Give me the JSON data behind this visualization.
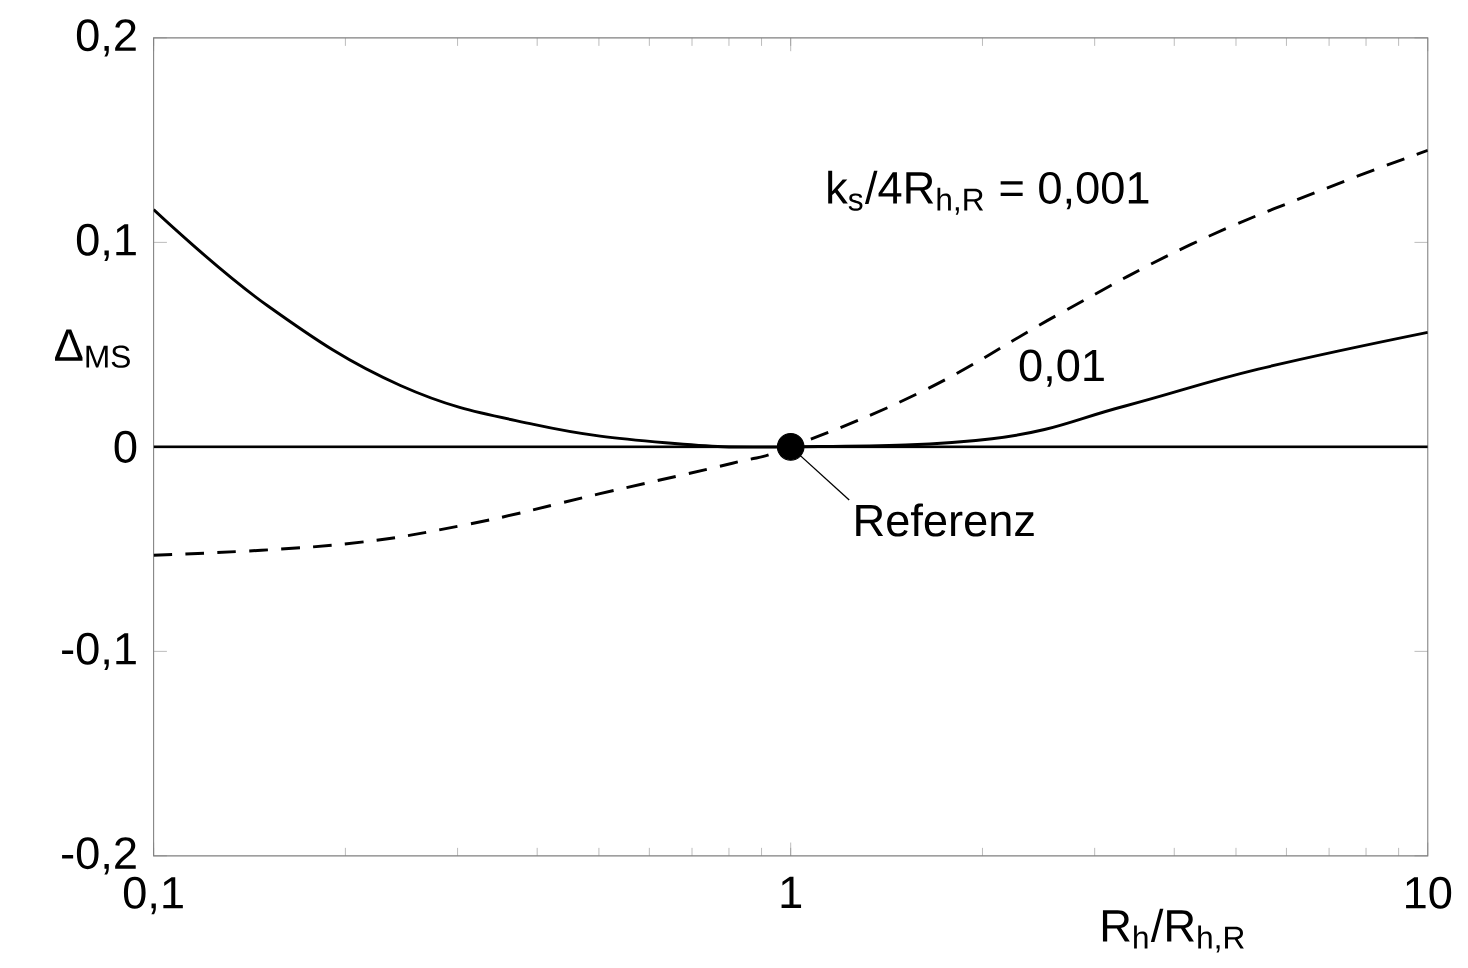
{
  "chart_data": {
    "type": "line",
    "xlabel": "R$_{h}$/R$_{h,R}$",
    "ylabel": "Δ$_{MS}$",
    "log": "x",
    "xlim": [
      0.1,
      10
    ],
    "ylim": [
      -0.2,
      0.2
    ],
    "xticks": [
      {
        "value": 0.1,
        "label": "0,1"
      },
      1,
      10
    ],
    "yticks": [
      {
        "value": -0.2,
        "label": "-0,2"
      },
      {
        "value": -0.1,
        "label": "-0,1"
      },
      0,
      {
        "value": 0.1,
        "label": "0,1"
      },
      {
        "value": 0.2,
        "label": "0,2"
      }
    ],
    "grid": false,
    "series": [
      {
        "name": "k$_{s}$/4R$_{h,R}$ = 0,001",
        "color": "#000000",
        "line_style": "dashed",
        "x": [
          0.1,
          0.192,
          0.31,
          0.5,
          0.81,
          1,
          1.63,
          2.64,
          4.25,
          6.87,
          10
        ],
        "values": [
          -0.053,
          -0.048,
          -0.038,
          -0.023,
          -0.008,
          0,
          0.028,
          0.065,
          0.099,
          0.126,
          0.145
        ]
      },
      {
        "name": "0,01",
        "color": "#000000",
        "line_style": "solid",
        "x": [
          0.1,
          0.151,
          0.244,
          0.395,
          0.636,
          1,
          2.07,
          3.35,
          5.42,
          10
        ],
        "values": [
          0.116,
          0.069,
          0.03,
          0.011,
          0.002,
          0,
          0.004,
          0.02,
          0.038,
          0.056
        ]
      },
      {
        "type": "scatter",
        "marker": "circle",
        "color": "#000000",
        "x": [
          1
        ],
        "values": [
          0
        ]
      }
    ],
    "ref_lines": [
      {
        "axis": "y",
        "value": 0,
        "color": "#000000"
      }
    ],
    "annotations": [
      {
        "text": "Referenz",
        "x": 1,
        "y": 0
      }
    ]
  }
}
